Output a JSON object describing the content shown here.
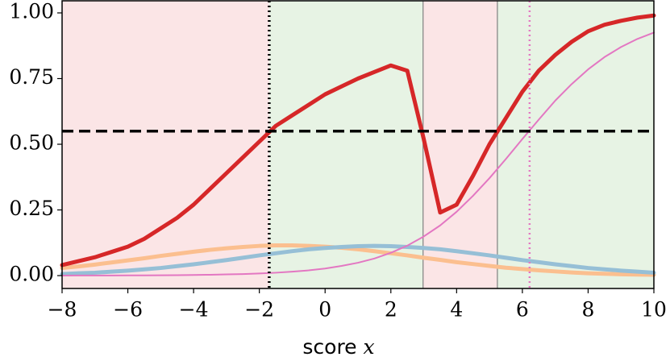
{
  "chart_data": {
    "type": "line",
    "x": [
      -8,
      -7.5,
      -7,
      -6.5,
      -6,
      -5.5,
      -5,
      -4.5,
      -4,
      -3.5,
      -3,
      -2.5,
      -2,
      -1.5,
      -1,
      -0.5,
      0,
      0.5,
      1,
      1.5,
      2,
      2.5,
      3,
      3.5,
      4,
      4.5,
      5,
      5.5,
      6,
      6.5,
      7,
      7.5,
      8,
      8.5,
      9,
      9.5,
      10
    ],
    "series": [
      {
        "color": "#fbbf8f",
        "width": 5,
        "values": [
          0.029,
          0.035,
          0.042,
          0.05,
          0.058,
          0.066,
          0.075,
          0.083,
          0.091,
          0.098,
          0.104,
          0.109,
          0.113,
          0.115,
          0.115,
          0.113,
          0.11,
          0.106,
          0.1,
          0.093,
          0.085,
          0.077,
          0.068,
          0.06,
          0.051,
          0.044,
          0.037,
          0.03,
          0.025,
          0.02,
          0.016,
          0.012,
          0.009,
          0.007,
          0.005,
          0.004,
          0.003
        ]
      },
      {
        "color": "#96bfd6",
        "width": 5,
        "values": [
          0.006,
          0.009,
          0.011,
          0.015,
          0.019,
          0.024,
          0.029,
          0.036,
          0.043,
          0.051,
          0.059,
          0.068,
          0.077,
          0.085,
          0.093,
          0.1,
          0.105,
          0.109,
          0.112,
          0.113,
          0.112,
          0.109,
          0.105,
          0.1,
          0.093,
          0.085,
          0.077,
          0.068,
          0.059,
          0.051,
          0.043,
          0.036,
          0.029,
          0.024,
          0.019,
          0.015,
          0.011
        ]
      },
      {
        "color": "#e377c2",
        "width": 2,
        "values": [
          0.0002,
          0.0003,
          0.0004,
          0.0005,
          0.0007,
          0.001,
          0.0013,
          0.0018,
          0.0025,
          0.0033,
          0.0045,
          0.006,
          0.0083,
          0.011,
          0.015,
          0.02,
          0.027,
          0.037,
          0.049,
          0.065,
          0.087,
          0.114,
          0.149,
          0.191,
          0.243,
          0.304,
          0.371,
          0.444,
          0.52,
          0.594,
          0.666,
          0.729,
          0.785,
          0.832,
          0.87,
          0.901,
          0.925
        ]
      },
      {
        "color": "#d62728",
        "width": 5,
        "values": [
          0.04,
          0.055,
          0.07,
          0.09,
          0.11,
          0.14,
          0.18,
          0.22,
          0.27,
          0.33,
          0.39,
          0.45,
          0.51,
          0.57,
          0.61,
          0.65,
          0.69,
          0.72,
          0.75,
          0.775,
          0.8,
          0.78,
          0.52,
          0.24,
          0.27,
          0.38,
          0.5,
          0.6,
          0.7,
          0.78,
          0.84,
          0.89,
          0.93,
          0.955,
          0.97,
          0.982,
          0.99
        ]
      }
    ],
    "regions": [
      {
        "from": -8,
        "to": -1.7,
        "color": "#fbe5e6"
      },
      {
        "from": -1.7,
        "to": 2.98,
        "color": "#e7f3e4"
      },
      {
        "from": 2.98,
        "to": 5.24,
        "color": "#fbe5e6"
      },
      {
        "from": 5.24,
        "to": 10,
        "color": "#e7f3e4"
      }
    ],
    "hline": 0.55,
    "vlines": [
      {
        "x": 2.98,
        "color": "#808080",
        "style": "solid"
      },
      {
        "x": 5.24,
        "color": "#808080",
        "style": "solid"
      },
      {
        "x": -1.7,
        "color": "#000000",
        "style": "dotted"
      },
      {
        "x": 6.22,
        "color": "#e377c2",
        "style": "dotted"
      }
    ],
    "xlim": [
      -8,
      10
    ],
    "ylim": [
      -0.049,
      1.046
    ],
    "xticks": [
      {
        "value": -8,
        "label": "−8"
      },
      {
        "value": -6,
        "label": "−6"
      },
      {
        "value": -4,
        "label": "−4"
      },
      {
        "value": -2,
        "label": "−2"
      },
      0,
      2,
      4,
      6,
      8,
      10
    ],
    "yticks": [
      {
        "value": 0,
        "label": "0.00"
      },
      {
        "value": 0.25,
        "label": "0.25"
      },
      {
        "value": 0.5,
        "label": "0.50"
      },
      {
        "value": 0.75,
        "label": "0.75"
      },
      {
        "value": 1,
        "label": "1.00"
      }
    ],
    "xlabel": "score",
    "xlabel_symbol": "x"
  }
}
